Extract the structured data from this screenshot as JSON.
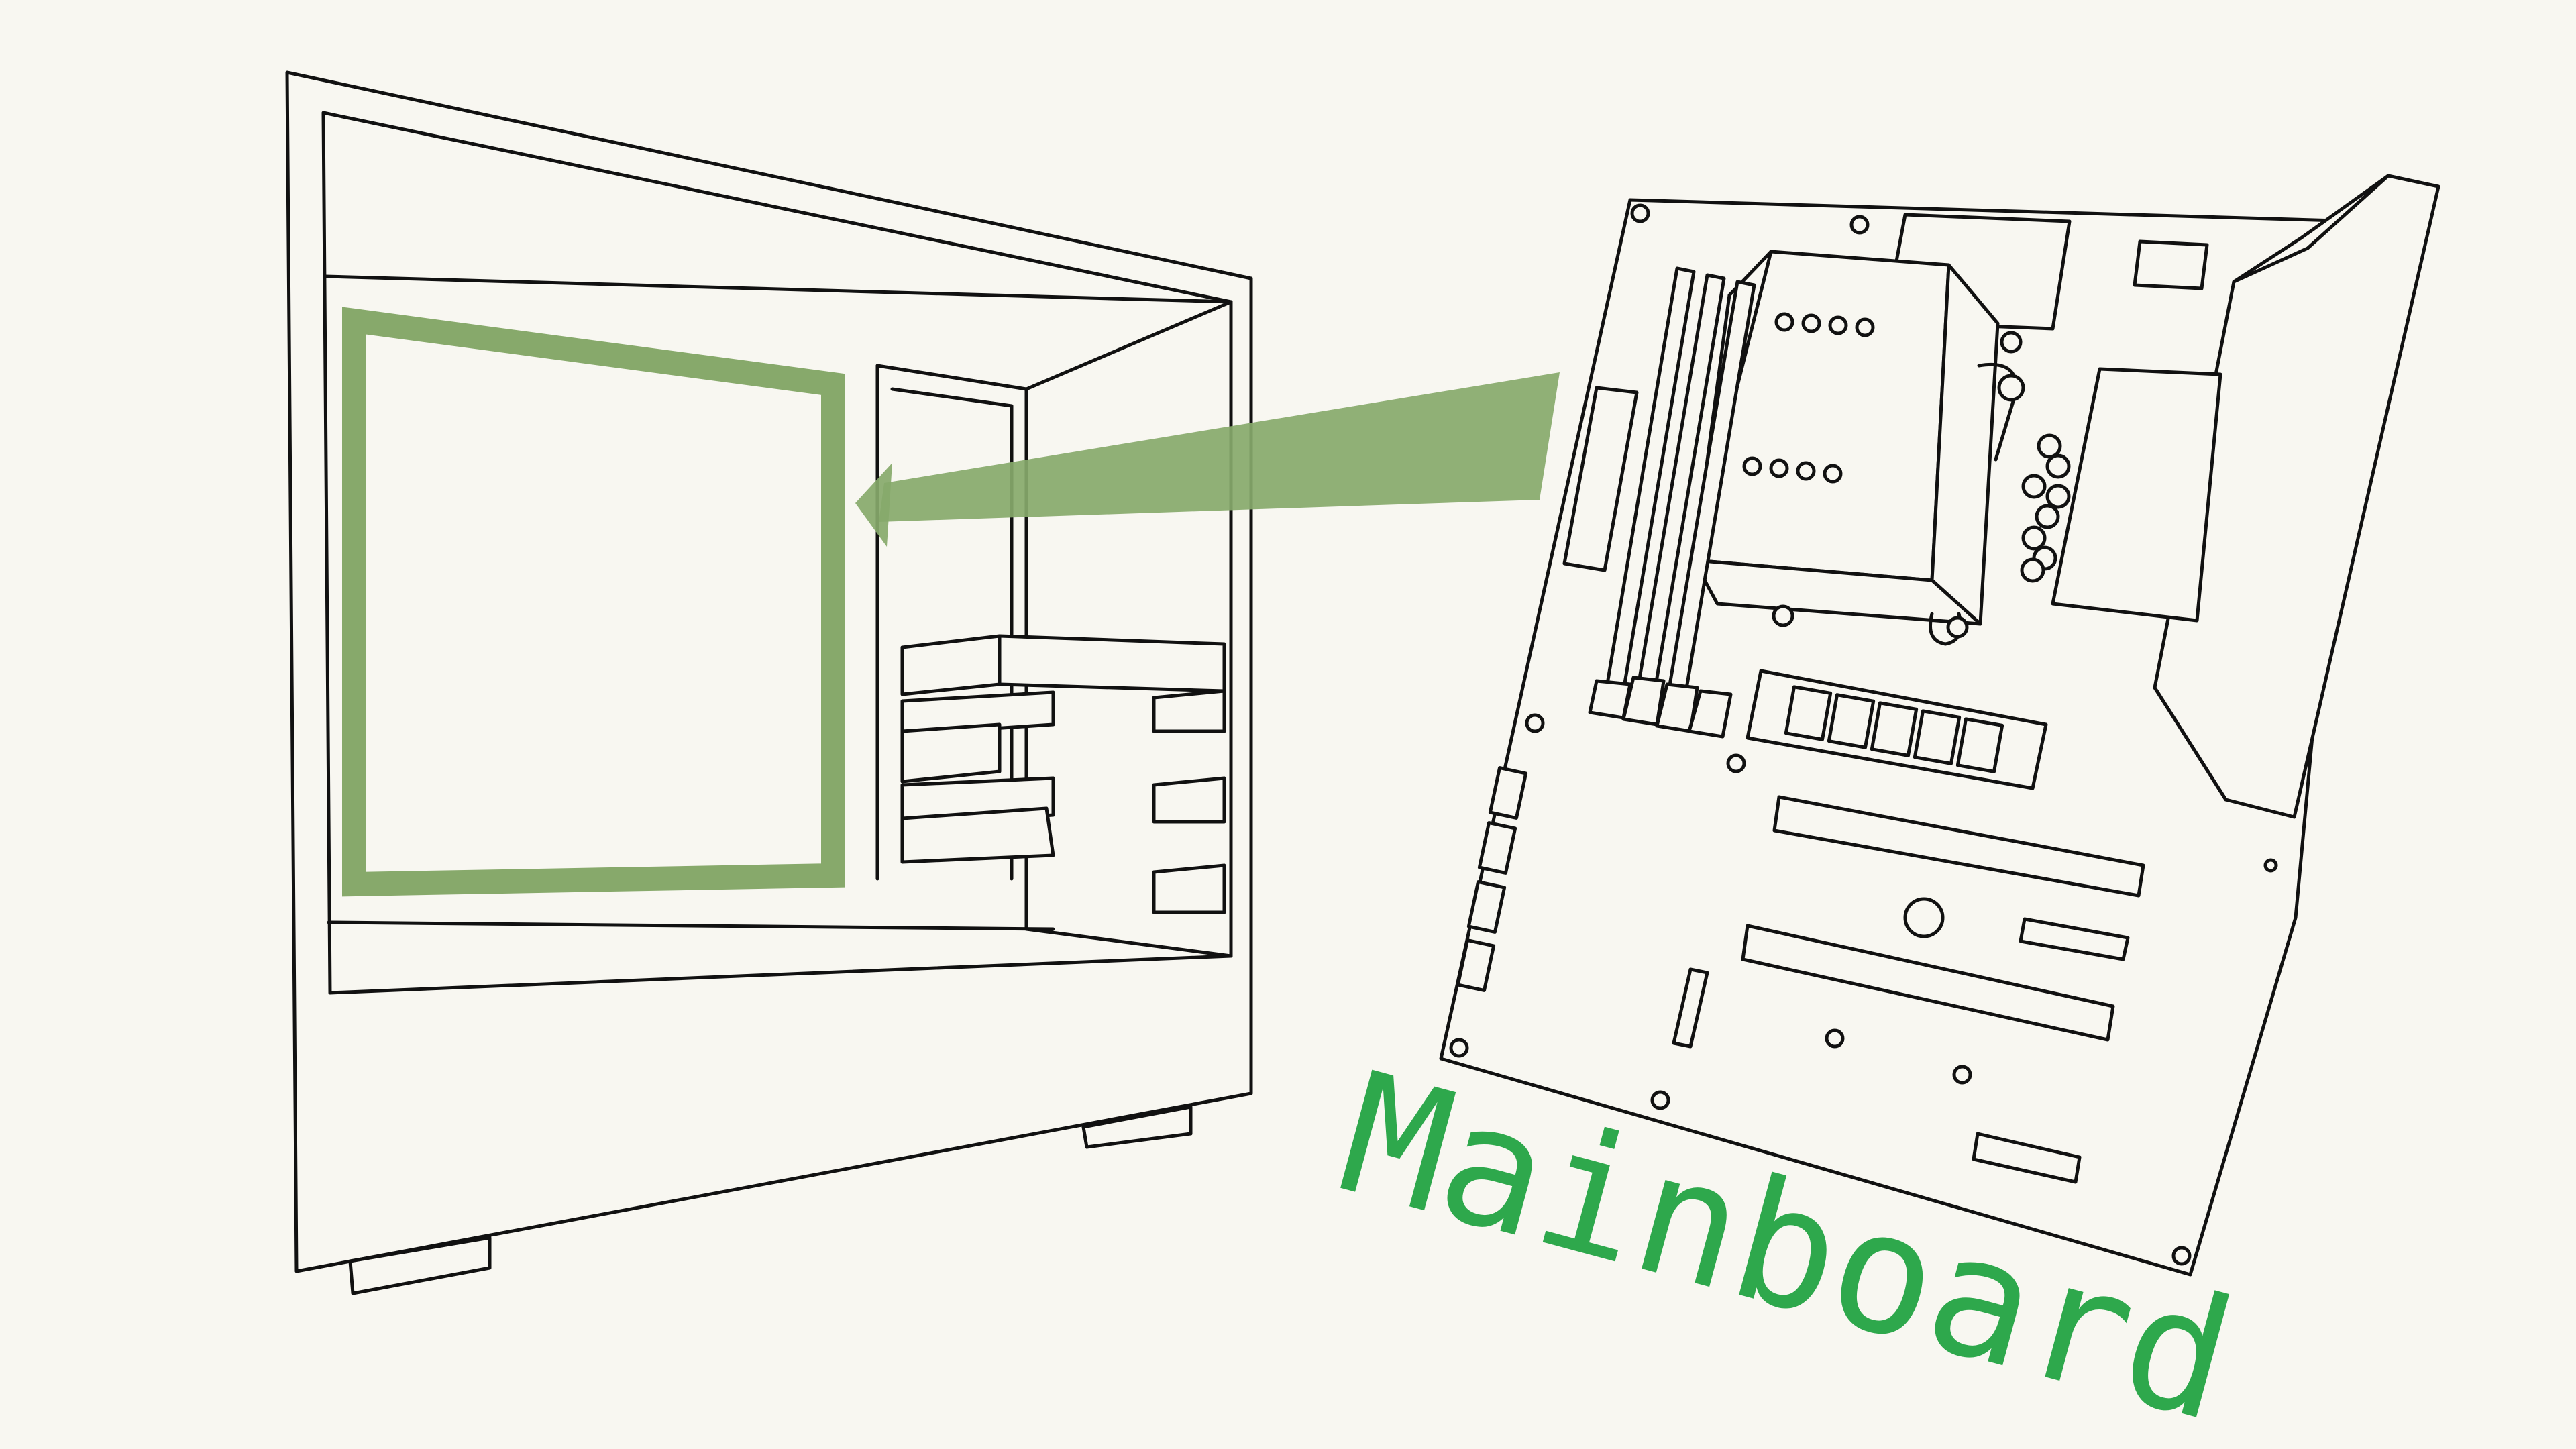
{
  "label": {
    "text": "Mainboard"
  },
  "colors": {
    "background": "#f8f7f1",
    "line": "#111111",
    "highlight": "#87a96b",
    "label": "#2ea84c"
  },
  "icons": {
    "case": "pc-case-icon",
    "board": "motherboard-icon",
    "arrow": "arrow-left-icon"
  }
}
